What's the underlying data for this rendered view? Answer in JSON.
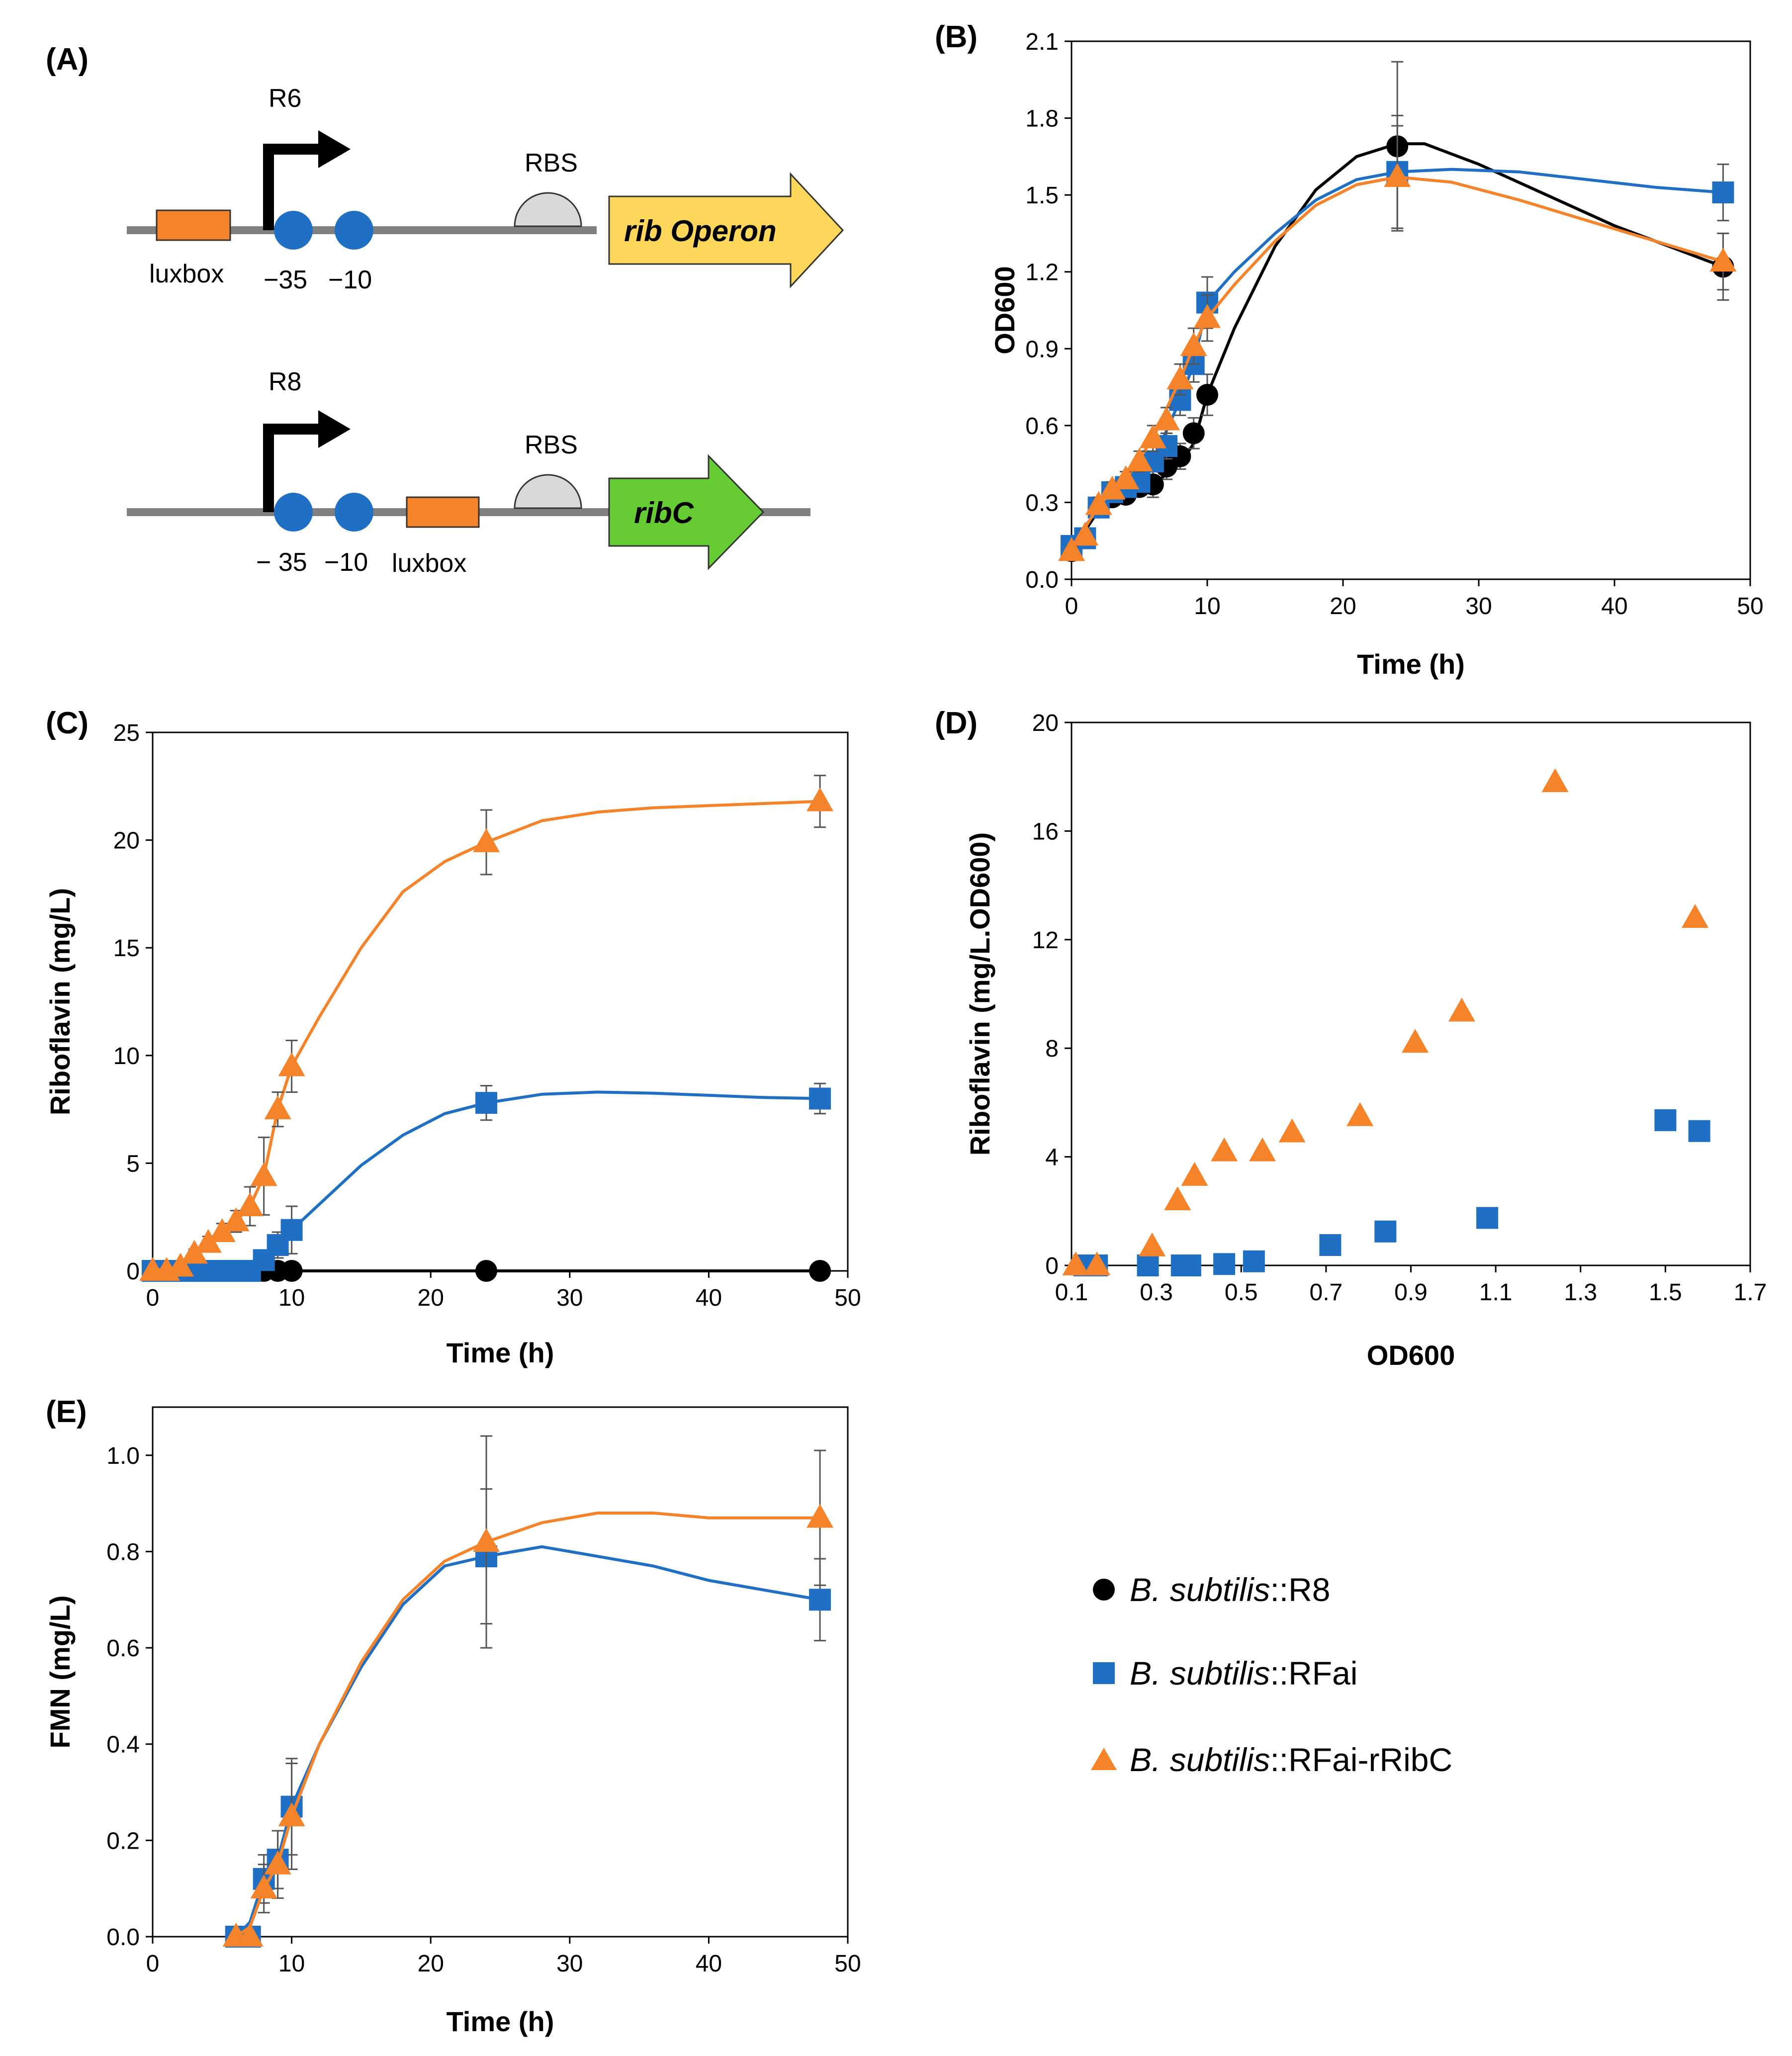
{
  "colors": {
    "r8": "#000000",
    "rfai": "#1f6fc5",
    "rfai_rribc": "#f5832a",
    "luxbox": "#f5832a",
    "promoter_circle": "#1f6fc5",
    "rib_operon_arrow": "#fdd75a",
    "ribc_arrow": "#66cc33",
    "rbs": "#d9d9d9",
    "dna_line": "#808080",
    "errorbar": "#555555"
  },
  "panel_a": {
    "letter": "(A)",
    "construct1": {
      "promoter": "R6",
      "luxbox": "luxbox",
      "minus35": "−35",
      "minus10": "−10",
      "rbs": "RBS",
      "gene_italic": "rib",
      "gene_rest": " Operon"
    },
    "construct2": {
      "promoter": "R8",
      "luxbox": "luxbox",
      "minus35": "− 35",
      "minus10": "−10",
      "rbs": "RBS",
      "gene_italic": "ribC"
    }
  },
  "legend": {
    "items": [
      {
        "key": "r8",
        "marker": "circle",
        "species": "B. subtilis",
        "strain": "::R8"
      },
      {
        "key": "rfai",
        "marker": "square",
        "species": "B. subtilis",
        "strain": "::RFai"
      },
      {
        "key": "rfai_rribc",
        "marker": "triangle",
        "species": "B. subtilis",
        "strain": "::RFai-rRibC"
      }
    ]
  },
  "chart_data": [
    {
      "id": "B",
      "letter": "(B)",
      "type": "scatter",
      "title": "",
      "xlabel": "Time (h)",
      "ylabel": "OD600",
      "xlim": [
        0,
        50
      ],
      "ylim": [
        0,
        2.1
      ],
      "xticks": [
        0,
        10,
        20,
        30,
        40,
        50
      ],
      "xtick_labels": [
        "0",
        "10",
        "20",
        "30",
        "40",
        "50"
      ],
      "yticks": [
        0,
        0.3,
        0.6,
        0.9,
        1.2,
        1.5,
        1.8,
        2.1
      ],
      "ytick_labels": [
        "0.0",
        "0.3",
        "0.6",
        "0.9",
        "1.2",
        "1.5",
        "1.8",
        "2.1"
      ],
      "series": [
        {
          "key": "r8",
          "marker": "circle",
          "x": [
            0,
            1,
            2,
            3,
            4,
            5,
            6,
            7,
            8,
            9,
            10,
            24,
            48
          ],
          "y": [
            0.11,
            0.16,
            0.28,
            0.32,
            0.33,
            0.36,
            0.37,
            0.44,
            0.48,
            0.57,
            0.72,
            1.69,
            1.22
          ],
          "err": [
            0.02,
            0.02,
            0.03,
            0.03,
            0.03,
            0.03,
            0.05,
            0.05,
            0.05,
            0.06,
            0.08,
            0.33,
            0.13
          ],
          "curve_x": [
            0,
            2,
            4,
            6,
            8,
            9,
            10,
            12,
            15,
            18,
            21,
            24,
            26,
            30,
            35,
            40,
            44,
            48
          ],
          "curve_y": [
            0.11,
            0.27,
            0.33,
            0.37,
            0.45,
            0.53,
            0.72,
            0.98,
            1.3,
            1.52,
            1.65,
            1.7,
            1.7,
            1.62,
            1.5,
            1.38,
            1.3,
            1.22
          ]
        },
        {
          "key": "rfai",
          "marker": "square",
          "x": [
            0,
            1,
            2,
            3,
            4,
            5,
            6,
            7,
            8,
            9,
            10,
            24,
            48
          ],
          "y": [
            0.13,
            0.16,
            0.28,
            0.34,
            0.36,
            0.38,
            0.46,
            0.52,
            0.7,
            0.84,
            1.08,
            1.59,
            1.51
          ],
          "err": [
            0.02,
            0.02,
            0.03,
            0.03,
            0.03,
            0.03,
            0.04,
            0.05,
            0.06,
            0.07,
            0.1,
            0.22,
            0.11
          ],
          "curve_x": [
            0,
            2,
            4,
            6,
            8,
            9,
            10,
            12,
            15,
            18,
            21,
            24,
            28,
            33,
            38,
            43,
            48
          ],
          "curve_y": [
            0.13,
            0.28,
            0.36,
            0.46,
            0.7,
            0.84,
            1.08,
            1.2,
            1.35,
            1.48,
            1.56,
            1.59,
            1.6,
            1.59,
            1.56,
            1.53,
            1.51
          ]
        },
        {
          "key": "rfai_rribc",
          "marker": "triangle",
          "x": [
            0,
            1,
            2,
            3,
            4,
            5,
            6,
            7,
            8,
            9,
            10,
            24,
            48
          ],
          "y": [
            0.11,
            0.17,
            0.29,
            0.35,
            0.39,
            0.46,
            0.55,
            0.62,
            0.78,
            0.91,
            1.02,
            1.57,
            1.24
          ],
          "err": [
            0.02,
            0.02,
            0.03,
            0.03,
            0.03,
            0.04,
            0.05,
            0.05,
            0.06,
            0.07,
            0.09,
            0.2,
            0.11
          ],
          "curve_x": [
            0,
            2,
            4,
            6,
            8,
            9,
            10,
            12,
            15,
            18,
            21,
            24,
            28,
            33,
            38,
            43,
            48
          ],
          "curve_y": [
            0.11,
            0.29,
            0.39,
            0.55,
            0.78,
            0.91,
            1.02,
            1.15,
            1.32,
            1.46,
            1.54,
            1.57,
            1.55,
            1.48,
            1.4,
            1.32,
            1.24
          ]
        }
      ]
    },
    {
      "id": "C",
      "letter": "(C)",
      "type": "scatter",
      "title": "",
      "xlabel": "Time (h)",
      "ylabel": "Riboflavin (mg/L)",
      "xlim": [
        0,
        50
      ],
      "ylim": [
        0,
        25
      ],
      "xticks": [
        0,
        10,
        20,
        30,
        40,
        50
      ],
      "xtick_labels": [
        "0",
        "10",
        "20",
        "30",
        "40",
        "50"
      ],
      "yticks": [
        0,
        5,
        10,
        15,
        20,
        25
      ],
      "ytick_labels": [
        "0",
        "5",
        "10",
        "15",
        "20",
        "25"
      ],
      "series": [
        {
          "key": "r8",
          "marker": "circle",
          "x": [
            0,
            1,
            2,
            3,
            4,
            5,
            6,
            7,
            8,
            9,
            10,
            24,
            48
          ],
          "y": [
            0,
            0,
            0,
            0,
            0,
            0,
            0,
            0,
            0,
            0,
            0,
            0,
            0
          ],
          "err": [
            0,
            0,
            0,
            0,
            0,
            0,
            0,
            0,
            0,
            0,
            0,
            0,
            0
          ],
          "curve_x": [
            0,
            48
          ],
          "curve_y": [
            0,
            0
          ]
        },
        {
          "key": "rfai",
          "marker": "square",
          "x": [
            0,
            1,
            2,
            3,
            4,
            5,
            6,
            7,
            8,
            9,
            10,
            24,
            48
          ],
          "y": [
            0,
            0,
            0,
            0,
            0,
            0,
            0,
            0,
            0.5,
            1.2,
            1.9,
            7.8,
            8.0
          ],
          "err": [
            0,
            0,
            0,
            0,
            0,
            0,
            0,
            0,
            0.4,
            0.6,
            1.1,
            0.8,
            0.7
          ],
          "curve_x": [
            0,
            6,
            7,
            8,
            9,
            10,
            12,
            15,
            18,
            21,
            24,
            28,
            32,
            36,
            40,
            44,
            48
          ],
          "curve_y": [
            0,
            0,
            0.1,
            0.5,
            1.2,
            1.9,
            3.1,
            4.9,
            6.3,
            7.3,
            7.8,
            8.2,
            8.3,
            8.25,
            8.15,
            8.05,
            8.0
          ]
        },
        {
          "key": "rfai_rribc",
          "marker": "triangle",
          "x": [
            0,
            1,
            2,
            3,
            4,
            5,
            6,
            7,
            8,
            9,
            10,
            24,
            48
          ],
          "y": [
            0,
            0,
            0.2,
            0.8,
            1.3,
            1.8,
            2.3,
            3.0,
            4.4,
            7.5,
            9.5,
            19.9,
            21.8
          ],
          "err": [
            0,
            0,
            0.1,
            0.2,
            0.3,
            0.4,
            0.5,
            0.9,
            1.8,
            0.8,
            1.2,
            1.5,
            1.2
          ],
          "curve_x": [
            0,
            2,
            4,
            6,
            7,
            8,
            9,
            10,
            12,
            15,
            18,
            21,
            24,
            28,
            32,
            36,
            40,
            44,
            48
          ],
          "curve_y": [
            0,
            0.2,
            1.3,
            2.3,
            3.0,
            4.4,
            7.5,
            9.5,
            11.8,
            15.0,
            17.6,
            19.0,
            19.9,
            20.9,
            21.3,
            21.5,
            21.6,
            21.7,
            21.8
          ]
        }
      ]
    },
    {
      "id": "D",
      "letter": "(D)",
      "type": "scatter",
      "title": "",
      "xlabel": "OD600",
      "ylabel": "Riboflavin (mg/L.OD600)",
      "xlim": [
        0.1,
        1.7
      ],
      "ylim": [
        0,
        20
      ],
      "xticks": [
        0.1,
        0.3,
        0.5,
        0.7,
        0.9,
        1.1,
        1.3,
        1.5,
        1.7
      ],
      "xtick_labels": [
        "0.1",
        "0.3",
        "0.5",
        "0.7",
        "0.9",
        "1.1",
        "1.3",
        "1.5",
        "1.7"
      ],
      "yticks": [
        0,
        4,
        8,
        12,
        16,
        20
      ],
      "ytick_labels": [
        "0",
        "4",
        "8",
        "12",
        "16",
        "20"
      ],
      "series": [
        {
          "key": "rfai",
          "marker": "square",
          "x": [
            0.13,
            0.16,
            0.28,
            0.36,
            0.38,
            0.46,
            0.53,
            0.71,
            0.84,
            1.08,
            1.5,
            1.58
          ],
          "y": [
            0,
            0,
            0,
            0,
            0,
            0.05,
            0.15,
            0.75,
            1.25,
            1.75,
            5.35,
            4.95
          ]
        },
        {
          "key": "rfai_rribc",
          "marker": "triangle",
          "x": [
            0.11,
            0.16,
            0.29,
            0.35,
            0.39,
            0.46,
            0.55,
            0.62,
            0.78,
            0.91,
            1.02,
            1.24,
            1.57
          ],
          "y": [
            0,
            0,
            0.7,
            2.4,
            3.3,
            4.2,
            4.2,
            4.9,
            5.5,
            8.2,
            9.35,
            17.8,
            12.8
          ]
        }
      ]
    },
    {
      "id": "E",
      "letter": "(E)",
      "type": "scatter",
      "title": "",
      "xlabel": "Time (h)",
      "ylabel": "FMN (mg/L)",
      "xlim": [
        0,
        50
      ],
      "ylim": [
        0,
        1.1
      ],
      "xticks": [
        0,
        10,
        20,
        30,
        40,
        50
      ],
      "xtick_labels": [
        "0",
        "10",
        "20",
        "30",
        "40",
        "50"
      ],
      "yticks": [
        0,
        0.2,
        0.4,
        0.6,
        0.8,
        1.0
      ],
      "ytick_labels": [
        "0.0",
        "0.2",
        "0.4",
        "0.6",
        "0.8",
        "1.0"
      ],
      "series": [
        {
          "key": "rfai",
          "marker": "square",
          "x": [
            6,
            7,
            8,
            9,
            10,
            24,
            48
          ],
          "y": [
            0,
            0,
            0.12,
            0.16,
            0.27,
            0.79,
            0.7
          ],
          "err": [
            0,
            0,
            0.05,
            0.06,
            0.1,
            0.14,
            0.085
          ],
          "curve_x": [
            6,
            7,
            8,
            9,
            10,
            12,
            15,
            18,
            21,
            24,
            28,
            32,
            36,
            40,
            44,
            48
          ],
          "curve_y": [
            0,
            0.03,
            0.12,
            0.16,
            0.27,
            0.4,
            0.56,
            0.69,
            0.77,
            0.79,
            0.81,
            0.79,
            0.77,
            0.74,
            0.72,
            0.7
          ]
        },
        {
          "key": "rfai_rribc",
          "marker": "triangle",
          "x": [
            6,
            7,
            8,
            9,
            10,
            24,
            48
          ],
          "y": [
            0,
            0,
            0.1,
            0.15,
            0.25,
            0.82,
            0.87
          ],
          "err": [
            0,
            0,
            0.05,
            0.07,
            0.11,
            0.22,
            0.14
          ],
          "curve_x": [
            6,
            7,
            8,
            9,
            10,
            12,
            15,
            18,
            21,
            24,
            28,
            32,
            36,
            40,
            44,
            48
          ],
          "curve_y": [
            0,
            0.02,
            0.1,
            0.15,
            0.25,
            0.4,
            0.57,
            0.7,
            0.78,
            0.82,
            0.86,
            0.88,
            0.88,
            0.87,
            0.87,
            0.87
          ]
        }
      ]
    }
  ]
}
